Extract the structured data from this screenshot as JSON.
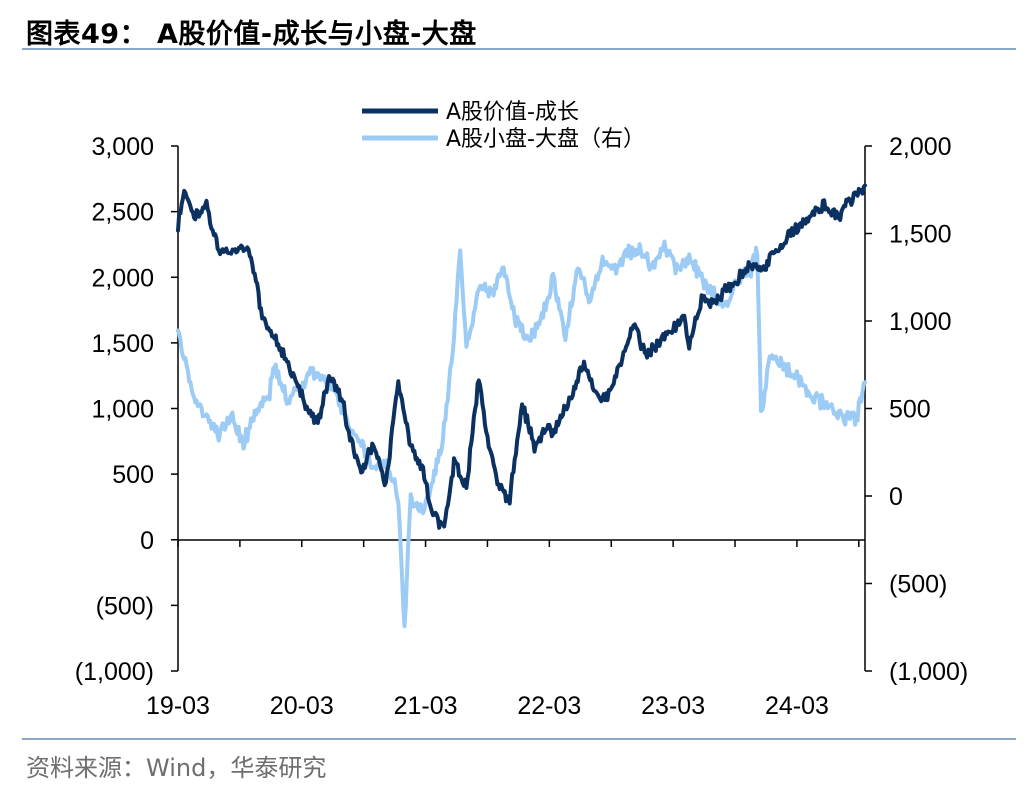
{
  "header": {
    "title": "图表49：  A股价值-成长与小盘-大盘"
  },
  "footer": {
    "source": "资料来源：Wind，华泰研究"
  },
  "chart_data": {
    "type": "line",
    "x_labels": [
      "19-03",
      "20-03",
      "21-03",
      "22-03",
      "23-03",
      "24-03"
    ],
    "left_axis": {
      "ylim": [
        -1000,
        3000
      ],
      "ticks": [
        3000,
        2500,
        2000,
        1500,
        1000,
        500,
        0,
        -500,
        -1000
      ],
      "tick_labels": [
        "3,000",
        "2,500",
        "2,000",
        "1,500",
        "1,000",
        "500",
        "0",
        "(500)",
        "(1,000)"
      ]
    },
    "right_axis": {
      "ylim": [
        -1000,
        2000
      ],
      "ticks": [
        2000,
        1500,
        1000,
        500,
        0,
        -500,
        -1000
      ],
      "tick_labels": [
        "2,000",
        "1,500",
        "1,000",
        "500",
        "0",
        "(500)",
        "(1,000)"
      ]
    },
    "legend": {
      "position": "top"
    },
    "series": [
      {
        "name": "A股价值-成长",
        "axis": "left",
        "color": "#0b3160",
        "x": [
          2019.17,
          2019.22,
          2019.3,
          2019.4,
          2019.5,
          2019.6,
          2019.75,
          2019.85,
          2019.95,
          2020.05,
          2020.15,
          2020.2,
          2020.3,
          2020.4,
          2020.5,
          2020.55,
          2020.65,
          2020.75,
          2020.85,
          2020.95,
          2021.0,
          2021.05,
          2021.15,
          2021.22,
          2021.32,
          2021.4,
          2021.5,
          2021.6,
          2021.65,
          2021.75,
          2021.85,
          2021.95,
          2022.05,
          2022.15,
          2022.2,
          2022.35,
          2022.45,
          2022.55,
          2022.65,
          2022.75,
          2022.85,
          2022.95,
          2023.05,
          2023.15,
          2023.25,
          2023.3,
          2023.4,
          2023.5,
          2023.6,
          2023.7,
          2023.8,
          2023.9,
          2024.0,
          2024.1,
          2024.2,
          2024.3,
          2024.4,
          2024.5,
          2024.6,
          2024.7,
          2024.72
        ],
        "values": [
          2400,
          2650,
          2450,
          2550,
          2200,
          2200,
          2200,
          1700,
          1550,
          1350,
          1150,
          1000,
          900,
          1250,
          1050,
          800,
          500,
          750,
          400,
          1200,
          950,
          700,
          550,
          200,
          100,
          600,
          400,
          1250,
          900,
          400,
          300,
          1050,
          700,
          850,
          800,
          1100,
          1350,
          1100,
          1100,
          1350,
          1650,
          1400,
          1500,
          1600,
          1700,
          1500,
          1850,
          1800,
          1900,
          2000,
          2100,
          2050,
          2200,
          2300,
          2400,
          2500,
          2550,
          2450,
          2600,
          2650,
          2700
        ]
      },
      {
        "name": "A股小盘-大盘（右）",
        "axis": "right",
        "color": "#9ccbf5",
        "x": [
          2019.17,
          2019.22,
          2019.3,
          2019.4,
          2019.5,
          2019.6,
          2019.7,
          2019.8,
          2019.9,
          2019.95,
          2020.05,
          2020.15,
          2020.25,
          2020.35,
          2020.45,
          2020.55,
          2020.65,
          2020.75,
          2020.85,
          2020.95,
          2021.0,
          2021.05,
          2021.1,
          2021.15,
          2021.25,
          2021.3,
          2021.35,
          2021.4,
          2021.45,
          2021.5,
          2021.55,
          2021.6,
          2021.7,
          2021.8,
          2021.9,
          2022.0,
          2022.1,
          2022.2,
          2022.3,
          2022.4,
          2022.5,
          2022.6,
          2022.7,
          2022.8,
          2022.9,
          2023.0,
          2023.1,
          2023.2,
          2023.3,
          2023.4,
          2023.5,
          2023.6,
          2023.7,
          2023.8,
          2023.85,
          2023.88,
          2023.95,
          2024.05,
          2024.15,
          2024.25,
          2024.35,
          2024.45,
          2024.55,
          2024.65,
          2024.72
        ],
        "values": [
          900,
          800,
          550,
          450,
          350,
          450,
          300,
          500,
          550,
          750,
          550,
          600,
          700,
          650,
          600,
          400,
          300,
          150,
          200,
          0,
          -750,
          0,
          -50,
          -100,
          150,
          300,
          550,
          950,
          1400,
          850,
          1000,
          1200,
          1150,
          1300,
          1000,
          900,
          1000,
          1250,
          900,
          1300,
          1100,
          1350,
          1300,
          1400,
          1400,
          1300,
          1450,
          1300,
          1350,
          1250,
          1150,
          1100,
          1250,
          1300,
          1400,
          450,
          800,
          750,
          700,
          600,
          550,
          500,
          450,
          450,
          650
        ]
      }
    ]
  }
}
